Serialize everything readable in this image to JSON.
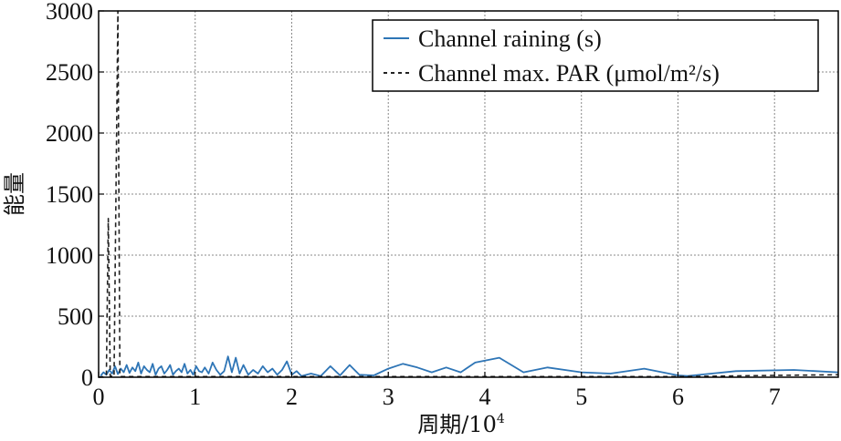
{
  "chart_data": {
    "type": "line",
    "xlabel": "周期/10",
    "xlabel_sup": "4",
    "ylabel": "能量",
    "xlim": [
      0,
      7.66
    ],
    "ylim": [
      0,
      3000
    ],
    "x_ticks": [
      "0",
      "1",
      "2",
      "3",
      "4",
      "5",
      "6",
      "7"
    ],
    "y_ticks": [
      "0",
      "500",
      "1000",
      "1500",
      "2000",
      "2500",
      "3000"
    ],
    "grid": true,
    "legend_position": "top-right",
    "series": [
      {
        "name": "Channel raining (s)",
        "color": "#2e75b6",
        "style": "solid",
        "x": [
          0.02,
          0.05,
          0.08,
          0.11,
          0.14,
          0.17,
          0.2,
          0.23,
          0.26,
          0.29,
          0.32,
          0.35,
          0.38,
          0.41,
          0.44,
          0.47,
          0.5,
          0.53,
          0.56,
          0.59,
          0.62,
          0.65,
          0.68,
          0.71,
          0.74,
          0.77,
          0.8,
          0.83,
          0.86,
          0.89,
          0.92,
          0.95,
          0.98,
          1.01,
          1.04,
          1.07,
          1.1,
          1.14,
          1.18,
          1.22,
          1.26,
          1.3,
          1.34,
          1.38,
          1.42,
          1.46,
          1.5,
          1.55,
          1.6,
          1.65,
          1.7,
          1.75,
          1.8,
          1.85,
          1.9,
          1.95,
          2.0,
          2.05,
          2.1,
          2.2,
          2.3,
          2.4,
          2.5,
          2.6,
          2.7,
          2.85,
          3.0,
          3.15,
          3.3,
          3.45,
          3.6,
          3.75,
          3.9,
          4.15,
          4.4,
          4.65,
          5.0,
          5.3,
          5.65,
          6.0,
          6.1,
          6.6,
          7.2,
          7.66
        ],
        "values": [
          10,
          40,
          20,
          60,
          30,
          90,
          25,
          70,
          40,
          100,
          35,
          80,
          50,
          120,
          30,
          90,
          60,
          40,
          110,
          20,
          70,
          90,
          30,
          60,
          100,
          20,
          50,
          70,
          40,
          110,
          30,
          60,
          20,
          90,
          50,
          40,
          80,
          30,
          120,
          60,
          20,
          50,
          170,
          40,
          160,
          30,
          100,
          20,
          60,
          30,
          90,
          40,
          70,
          20,
          60,
          130,
          20,
          50,
          10,
          30,
          10,
          90,
          15,
          100,
          20,
          15,
          70,
          110,
          80,
          40,
          80,
          40,
          120,
          160,
          40,
          80,
          40,
          30,
          70,
          15,
          10,
          50,
          60,
          40
        ]
      },
      {
        "name": "Channel max. PAR (μmol/m²/s)",
        "color": "#222222",
        "style": "dashed",
        "x": [
          0.0,
          0.06,
          0.08,
          0.1,
          0.12,
          0.16,
          0.2,
          0.22,
          0.24,
          0.4,
          1.0,
          2.0,
          3.0,
          4.0,
          5.0,
          6.0,
          6.5,
          7.0,
          7.66
        ],
        "values": [
          0,
          5,
          20,
          1300,
          10,
          5,
          3000,
          10,
          5,
          5,
          5,
          5,
          5,
          5,
          5,
          5,
          10,
          15,
          20
        ]
      }
    ]
  }
}
